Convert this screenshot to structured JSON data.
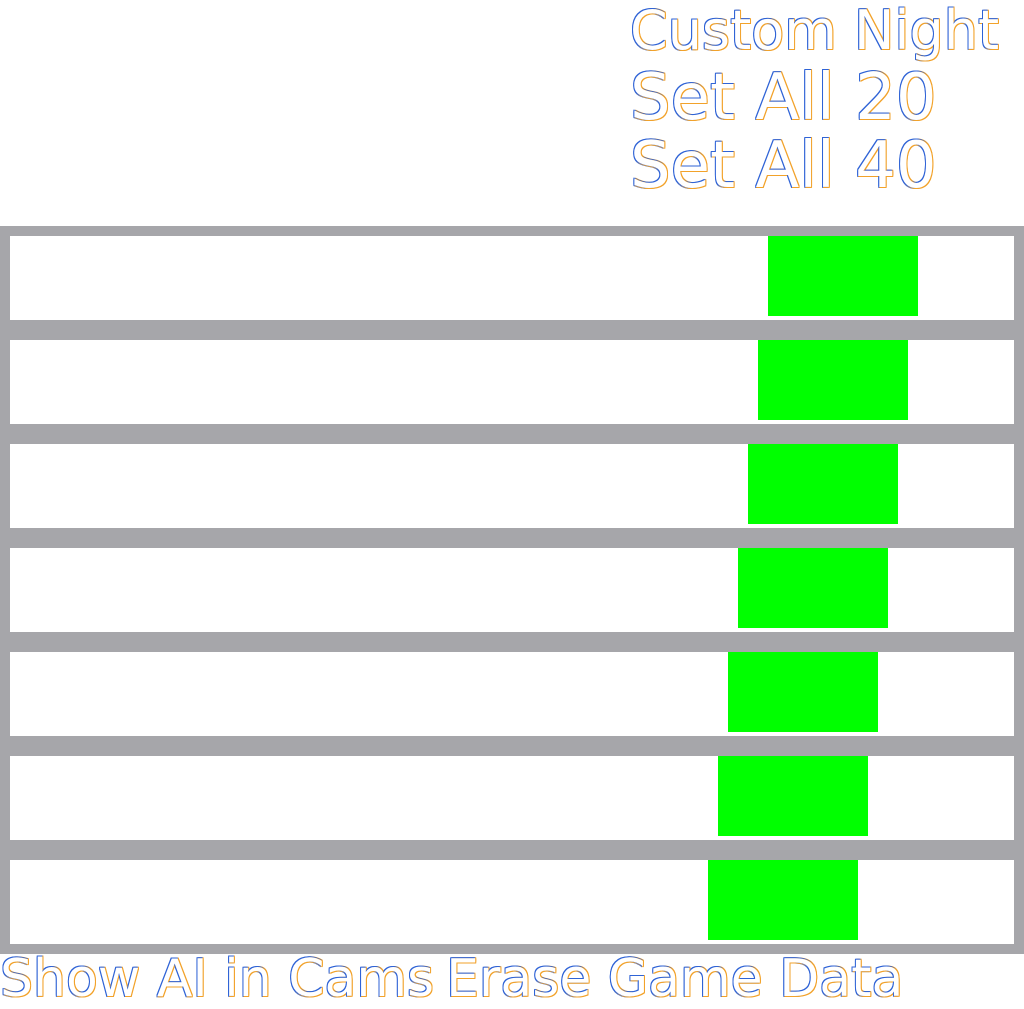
{
  "title": "Custom Night",
  "buttons": {
    "set_all_20": "Set All 20",
    "set_all_40": "Set All 40"
  },
  "bottom_menu": {
    "show_ai": "Show AI in Cams",
    "erase": "Erase Game Data"
  },
  "colors": {
    "slider_fill": "#00ff00",
    "slider_border": "#a6a6aa",
    "text_outline_left": "#2f63d6",
    "text_outline_right": "#f2a22a",
    "background": "#ffffff"
  },
  "sliders": [
    {
      "fill_start": 0.755
    },
    {
      "fill_start": 0.745
    },
    {
      "fill_start": 0.735
    },
    {
      "fill_start": 0.725
    },
    {
      "fill_start": 0.715
    },
    {
      "fill_start": 0.705
    },
    {
      "fill_start": 0.695
    }
  ]
}
